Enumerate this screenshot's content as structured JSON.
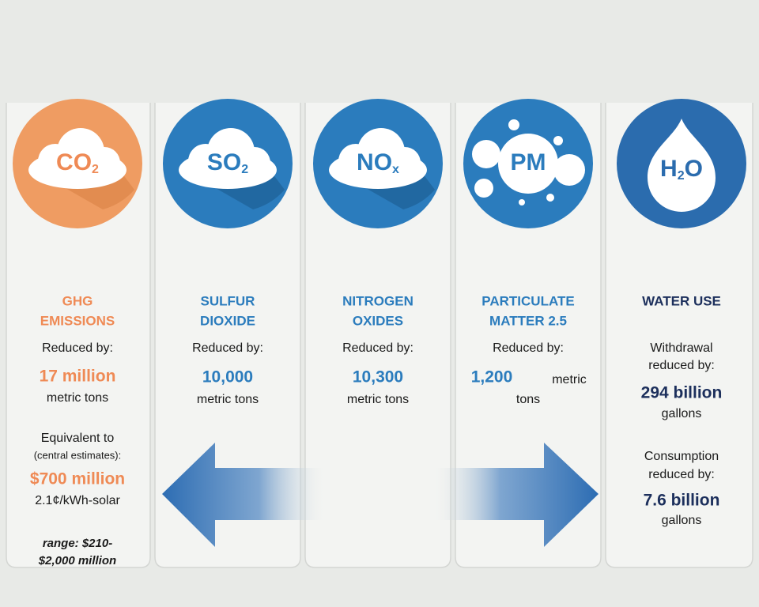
{
  "panels": [
    {
      "icon": {
        "text": "CO",
        "sub": "2"
      },
      "title": [
        "GHG",
        "EMISSIONS"
      ],
      "lines": [
        "Reduced by:",
        "17 million",
        "metric tons",
        "Equivalent to",
        "(central estimates):",
        "$700 million",
        "2.1¢/kWh-solar",
        "range: $210-",
        "$2,000 million"
      ]
    },
    {
      "icon": {
        "text": "SO",
        "sub": "2"
      },
      "title": [
        "SULFUR",
        "DIOXIDE"
      ],
      "lines": [
        "Reduced by:",
        "10,000",
        "metric tons"
      ]
    },
    {
      "icon": {
        "text": "NO",
        "sub": "x"
      },
      "title": [
        "NITROGEN",
        "OXIDES"
      ],
      "lines": [
        "Reduced by:",
        "10,300",
        "metric tons"
      ]
    },
    {
      "icon": {
        "text": "PM"
      },
      "title": [
        "PARTICULATE",
        "MATTER 2.5"
      ],
      "lines": [
        "Reduced by:",
        "1,200",
        "metric",
        "tons"
      ]
    },
    {
      "icon": {
        "text": "H",
        "sub": "2",
        "after": "O"
      },
      "title": [
        "WATER USE"
      ],
      "lines": [
        "Withdrawal",
        "reduced by:",
        "294 billion",
        "gallons",
        "Consumption",
        "reduced by:",
        "7.6 billion",
        "gallons"
      ]
    }
  ]
}
